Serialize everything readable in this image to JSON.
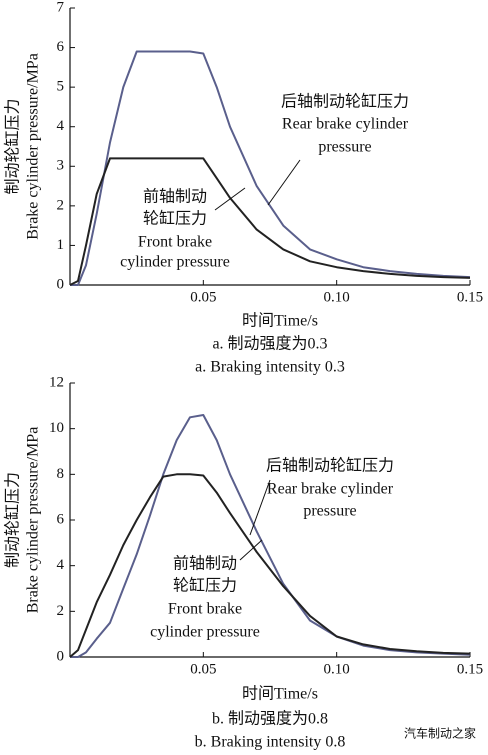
{
  "charts": [
    {
      "chart_data": {
        "type": "line",
        "x": [
          0,
          0.003,
          0.006,
          0.01,
          0.015,
          0.02,
          0.025,
          0.03,
          0.035,
          0.04,
          0.045,
          0.05,
          0.055,
          0.06,
          0.07,
          0.08,
          0.09,
          0.1,
          0.11,
          0.12,
          0.13,
          0.14,
          0.15
        ],
        "series": [
          {
            "name": "Rear brake cylinder pressure",
            "color": "#5a5f8c",
            "values": [
              0,
              0,
              0.5,
              1.8,
              3.6,
              5.0,
              5.9,
              5.9,
              5.9,
              5.9,
              5.9,
              5.85,
              5.0,
              4.0,
              2.5,
              1.5,
              0.9,
              0.65,
              0.45,
              0.35,
              0.28,
              0.23,
              0.2
            ]
          },
          {
            "name": "Front brake cylinder pressure",
            "color": "#222222",
            "values": [
              0,
              0.1,
              1.0,
              2.3,
              3.2,
              3.2,
              3.2,
              3.2,
              3.2,
              3.2,
              3.2,
              3.2,
              2.7,
              2.2,
              1.4,
              0.9,
              0.6,
              0.45,
              0.35,
              0.28,
              0.23,
              0.2,
              0.18
            ]
          }
        ],
        "xlim": [
          0,
          0.15
        ],
        "xticks": [
          0.05,
          {
            "value": 0.1,
            "label": "0.10"
          },
          0.15
        ],
        "ylim": [
          0,
          7
        ],
        "yticks": [
          0,
          1,
          2,
          3,
          4,
          5,
          6,
          7
        ],
        "xlabel": "时间Time/s",
        "ylabel": [
          "制动轮缸压力",
          "Brake cylinder pressure/MPa"
        ],
        "annotations": [
          [
            "后轴制动轮缸压力",
            "Rear brake cylinder",
            "pressure"
          ],
          [
            "前轴制动",
            "轮缸压力",
            "Front brake",
            "cylinder pressure"
          ]
        ],
        "caption": [
          "a. 制动强度为0.3",
          "a. Braking intensity 0.3"
        ]
      }
    },
    {
      "chart_data": {
        "type": "line",
        "x": [
          0,
          0.003,
          0.006,
          0.01,
          0.015,
          0.02,
          0.025,
          0.03,
          0.035,
          0.04,
          0.045,
          0.05,
          0.055,
          0.06,
          0.07,
          0.08,
          0.09,
          0.1,
          0.11,
          0.12,
          0.13,
          0.14,
          0.15
        ],
        "series": [
          {
            "name": "Rear brake cylinder pressure",
            "color": "#5a5f8c",
            "values": [
              0,
              0,
              0.2,
              0.8,
              1.5,
              3.0,
              4.5,
              6.2,
              8.0,
              9.5,
              10.5,
              10.6,
              9.5,
              8.0,
              5.5,
              3.2,
              1.6,
              0.9,
              0.5,
              0.3,
              0.2,
              0.15,
              0.1
            ]
          },
          {
            "name": "Front brake cylinder pressure",
            "color": "#222222",
            "values": [
              0,
              0.3,
              1.2,
              2.4,
              3.6,
              4.9,
              6.0,
              7.0,
              7.9,
              8.0,
              8.0,
              7.95,
              7.2,
              6.3,
              4.6,
              3.1,
              1.8,
              0.9,
              0.55,
              0.35,
              0.25,
              0.18,
              0.15
            ]
          }
        ],
        "xlim": [
          0,
          0.15
        ],
        "xticks": [
          0.05,
          {
            "value": 0.1,
            "label": "0.10"
          },
          0.15
        ],
        "ylim": [
          0,
          12
        ],
        "yticks": [
          0,
          2,
          4,
          6,
          8,
          10,
          12
        ],
        "xlabel": "时间Time/s",
        "ylabel": [
          "制动轮缸压力",
          "Brake cylinder pressure/MPa"
        ],
        "annotations": [
          [
            "后轴制动轮缸压力",
            "Rear brake cylinder",
            "pressure"
          ],
          [
            "前轴制动",
            "轮缸压力",
            "Front brake",
            "cylinder pressure"
          ]
        ],
        "caption": [
          "b. 制动强度为0.8",
          "b. Braking intensity 0.8"
        ]
      }
    }
  ],
  "watermark": "汽车制动之家"
}
